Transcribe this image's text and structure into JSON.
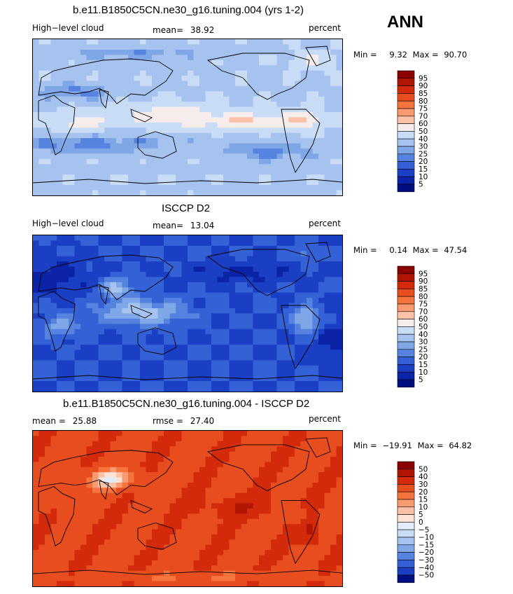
{
  "season": "ANN",
  "chart_data": [
    {
      "type": "heatmap",
      "title": "b.e11.B1850C5CN.ne30_g16.tuning.004 (yrs 1-2)",
      "left_label": "High−level cloud",
      "mean_label": "mean=",
      "mean_value": "38.92",
      "units": "percent",
      "min_label": "Min =",
      "min_value": "9.32",
      "max_label": "Max =",
      "max_value": "90.70",
      "colorbar_levels": [
        "95",
        "90",
        "85",
        "80",
        "75",
        "70",
        "60",
        "50",
        "40",
        "30",
        "25",
        "20",
        "15",
        "10",
        "5"
      ],
      "colorbar_colors": [
        "#8b0000",
        "#b11503",
        "#d22a0a",
        "#e84d20",
        "#f5733c",
        "#fa9a70",
        "#fcc2a8",
        "#f7ecec",
        "#c9dcf5",
        "#a5c3ee",
        "#7fa6e6",
        "#5683df",
        "#3561d6",
        "#1b3fc4",
        "#0b23a6",
        "#000e80"
      ],
      "field": "model_high_cloud"
    },
    {
      "type": "heatmap",
      "title": "ISCCP D2",
      "left_label": "High−level cloud",
      "mean_label": "mean=",
      "mean_value": "13.04",
      "units": "percent",
      "min_label": "Min =",
      "min_value": "0.14",
      "max_label": "Max =",
      "max_value": "47.54",
      "colorbar_levels": [
        "95",
        "90",
        "85",
        "80",
        "75",
        "70",
        "60",
        "50",
        "40",
        "30",
        "25",
        "20",
        "15",
        "10",
        "5"
      ],
      "colorbar_colors": [
        "#8b0000",
        "#b11503",
        "#d22a0a",
        "#e84d20",
        "#f5733c",
        "#fa9a70",
        "#fcc2a8",
        "#f7ecec",
        "#c9dcf5",
        "#a5c3ee",
        "#7fa6e6",
        "#5683df",
        "#3561d6",
        "#1b3fc4",
        "#0b23a6",
        "#000e80"
      ],
      "field": "obs_high_cloud"
    },
    {
      "type": "heatmap",
      "title": "b.e11.B1850C5CN.ne30_g16.tuning.004 - ISCCP D2",
      "left_label": "mean =",
      "left_value": "25.88",
      "mean_label": "rmse =",
      "mean_value": "27.40",
      "units": "percent",
      "min_label": "Min =",
      "min_value": "−19.91",
      "max_label": "Max =",
      "max_value": "64.82",
      "colorbar_levels": [
        "50",
        "40",
        "30",
        "20",
        "15",
        "10",
        "5",
        "0",
        "−5",
        "−10",
        "−15",
        "−20",
        "−30",
        "−40",
        "−50"
      ],
      "colorbar_colors": [
        "#8b0000",
        "#b11503",
        "#d22a0a",
        "#e84d20",
        "#f5733c",
        "#fa9a70",
        "#fcc2a8",
        "#fde3d6",
        "#e1ecfa",
        "#c9dcf5",
        "#a5c3ee",
        "#7fa6e6",
        "#5683df",
        "#3561d6",
        "#1b3fc4",
        "#000e80"
      ],
      "field": "difference"
    }
  ]
}
